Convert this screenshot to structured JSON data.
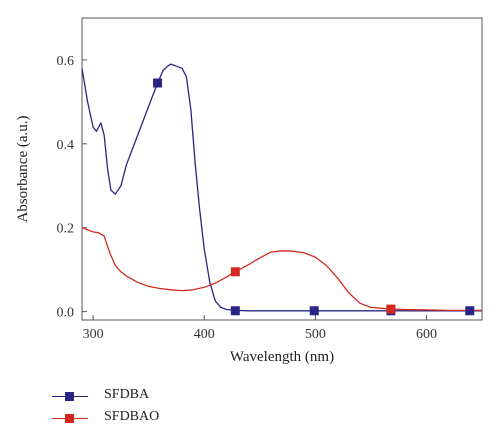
{
  "chart_data": {
    "type": "line",
    "xlabel": "Wavelength (nm)",
    "ylabel": "Absorbance (a.u.)",
    "xlim": [
      290,
      650
    ],
    "ylim": [
      -0.02,
      0.7
    ],
    "xticks": [
      300,
      400,
      500,
      600
    ],
    "yticks": [
      0.0,
      0.2,
      0.4,
      0.6
    ],
    "xtick_labels": [
      "300",
      "400",
      "500",
      "600"
    ],
    "ytick_labels": [
      "0.0",
      "0.2",
      "0.4",
      "0.6"
    ],
    "grid": false,
    "legend_position": "bottom-left",
    "series": [
      {
        "name": "SFDBA",
        "color": "#2a2585",
        "marker": "square",
        "x": [
          290,
          295,
          300,
          303,
          307,
          310,
          313,
          316,
          320,
          325,
          330,
          340,
          350,
          358,
          363,
          367,
          370,
          375,
          380,
          384,
          388,
          392,
          396,
          400,
          405,
          410,
          415,
          420,
          428,
          440,
          460,
          500,
          550,
          600,
          640,
          650
        ],
        "y": [
          0.58,
          0.5,
          0.44,
          0.43,
          0.45,
          0.42,
          0.34,
          0.29,
          0.28,
          0.3,
          0.35,
          0.42,
          0.49,
          0.545,
          0.575,
          0.585,
          0.59,
          0.585,
          0.58,
          0.56,
          0.48,
          0.35,
          0.24,
          0.15,
          0.07,
          0.025,
          0.01,
          0.005,
          0.003,
          0.002,
          0.002,
          0.002,
          0.002,
          0.002,
          0.002,
          0.002
        ],
        "marker_x": [
          358,
          428,
          499,
          568,
          639
        ],
        "marker_y": [
          0.545,
          0.002,
          0.002,
          0.002,
          0.002
        ]
      },
      {
        "name": "SFDBAO",
        "color": "#d42a1e",
        "marker": "square",
        "x": [
          290,
          295,
          300,
          305,
          310,
          315,
          320,
          325,
          330,
          340,
          350,
          360,
          370,
          380,
          390,
          400,
          410,
          420,
          428,
          440,
          450,
          460,
          470,
          480,
          490,
          500,
          510,
          520,
          530,
          540,
          550,
          560,
          570,
          580,
          600,
          620,
          650
        ],
        "y": [
          0.2,
          0.195,
          0.19,
          0.188,
          0.18,
          0.14,
          0.11,
          0.095,
          0.085,
          0.07,
          0.06,
          0.055,
          0.052,
          0.05,
          0.052,
          0.058,
          0.068,
          0.082,
          0.095,
          0.112,
          0.128,
          0.142,
          0.145,
          0.144,
          0.14,
          0.13,
          0.11,
          0.08,
          0.045,
          0.02,
          0.01,
          0.008,
          0.006,
          0.005,
          0.004,
          0.003,
          0.003
        ],
        "marker_x": [
          428,
          568
        ],
        "marker_y": [
          0.095,
          0.006
        ]
      }
    ]
  }
}
